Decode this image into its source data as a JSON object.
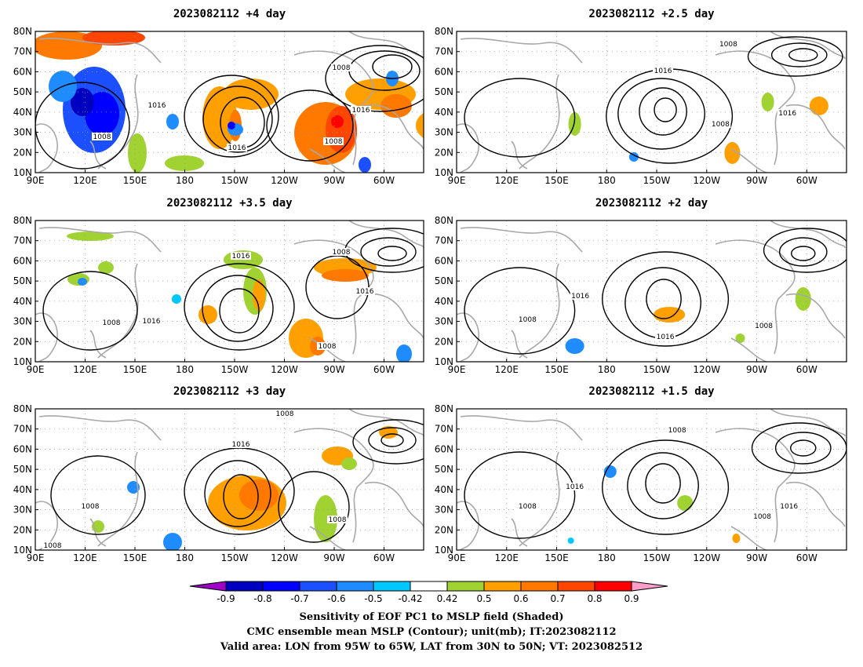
{
  "panels": [
    {
      "title": "2023082112  +4 day",
      "contour_labels": [
        "1016",
        "1016",
        "1008",
        "1008",
        "1016",
        "1008"
      ]
    },
    {
      "title": "2023082112  +2.5 day",
      "contour_labels": [
        "1008",
        "1016",
        "1008",
        "1016"
      ]
    },
    {
      "title": "2023082112  +3.5 day",
      "contour_labels": [
        "1016",
        "1008",
        "1016",
        "1008",
        "1016",
        "1008"
      ]
    },
    {
      "title": "2023082112  +2 day",
      "contour_labels": [
        "1016",
        "1008",
        "1016",
        "1008"
      ]
    },
    {
      "title": "2023082112  +3 day",
      "contour_labels": [
        "1008",
        "1016",
        "1008",
        "1008",
        "1008"
      ]
    },
    {
      "title": "2023082112  +1.5 day",
      "contour_labels": [
        "1008",
        "1016",
        "1008",
        "1016",
        "1008"
      ]
    }
  ],
  "axes": {
    "lat_labels": [
      "80N",
      "70N",
      "60N",
      "50N",
      "40N",
      "30N",
      "20N",
      "10N"
    ],
    "lon_labels": [
      "90E",
      "120E",
      "150E",
      "180",
      "150W",
      "120W",
      "90W",
      "60W"
    ]
  },
  "colorbar": {
    "labels": [
      "-0.9",
      "-0.8",
      "-0.7",
      "-0.6",
      "-0.5",
      "-0.42",
      "0.42",
      "0.5",
      "0.6",
      "0.7",
      "0.8",
      "0.9"
    ],
    "colors": [
      "#a000c8",
      "#0000c0",
      "#0000ff",
      "#1c50ff",
      "#1e8cff",
      "#00c8ff",
      "#ffffff",
      "#a0d232",
      "#ffa000",
      "#ff7800",
      "#ff4600",
      "#ff0000",
      "#ff9ec8"
    ]
  },
  "caption": {
    "line1": "Sensitivity of EOF PC1 to MSLP field (Shaded)",
    "line2": "CMC ensemble mean MSLP (Contour); unit(mb); IT:2023082112",
    "line3": "Valid area: LON from 95W to 65W, LAT from 30N to 50N; VT: 2023082512"
  }
}
